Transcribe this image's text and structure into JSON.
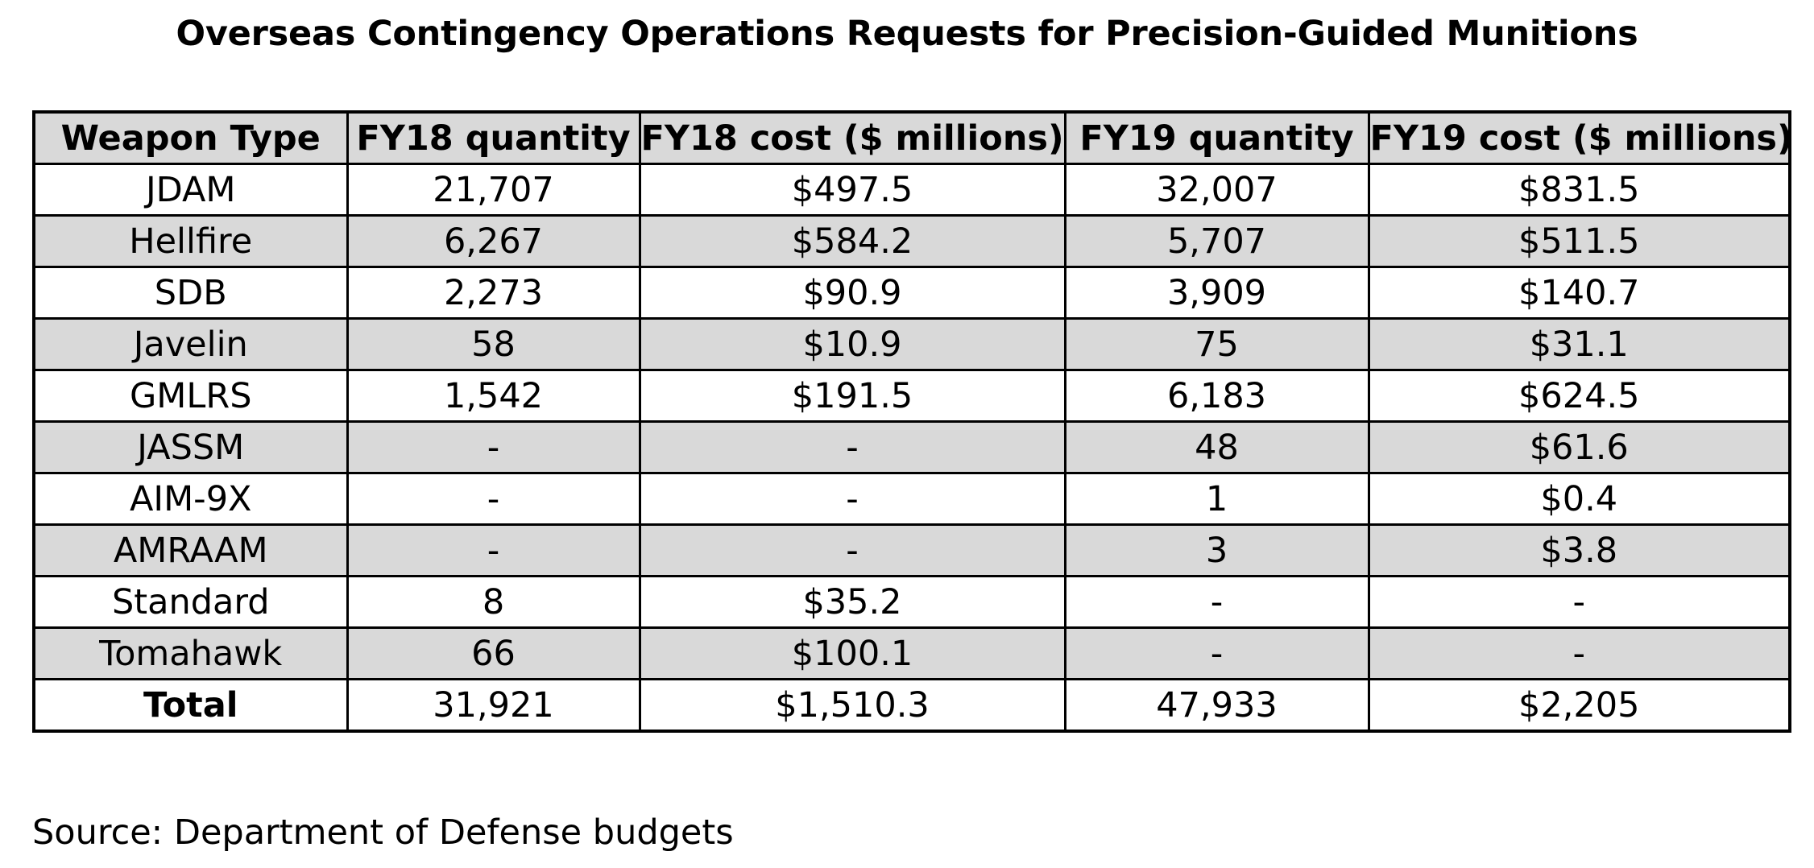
{
  "title": "Overseas Contingency Operations Requests for Precision-Guided Munitions",
  "table": {
    "headers": [
      "Weapon Type",
      "FY18 quantity",
      "FY18 cost ($ millions)",
      "FY19 quantity",
      "FY19 cost ($ millions)"
    ],
    "rows": [
      [
        "JDAM",
        "21,707",
        "$497.5",
        "32,007",
        "$831.5"
      ],
      [
        "Hellfire",
        "6,267",
        "$584.2",
        "5,707",
        "$511.5"
      ],
      [
        "SDB",
        "2,273",
        "$90.9",
        "3,909",
        "$140.7"
      ],
      [
        "Javelin",
        "58",
        "$10.9",
        "75",
        "$31.1"
      ],
      [
        "GMLRS",
        "1,542",
        "$191.5",
        "6,183",
        "$624.5"
      ],
      [
        "JASSM",
        "-",
        "-",
        "48",
        "$61.6"
      ],
      [
        "AIM-9X",
        "-",
        "-",
        "1",
        "$0.4"
      ],
      [
        "AMRAAM",
        "-",
        "-",
        "3",
        "$3.8"
      ],
      [
        "Standard",
        "8",
        "$35.2",
        "-",
        "-"
      ],
      [
        "Tomahawk",
        "66",
        "$100.1",
        "-",
        "-"
      ]
    ],
    "total": [
      "Total",
      "31,921",
      "$1,510.3",
      "47,933",
      "$2,205"
    ]
  },
  "source": "Source: Department of Defense budgets",
  "colors": {
    "stripe": "#d9d9d9",
    "border": "#000000",
    "background": "#ffffff"
  }
}
